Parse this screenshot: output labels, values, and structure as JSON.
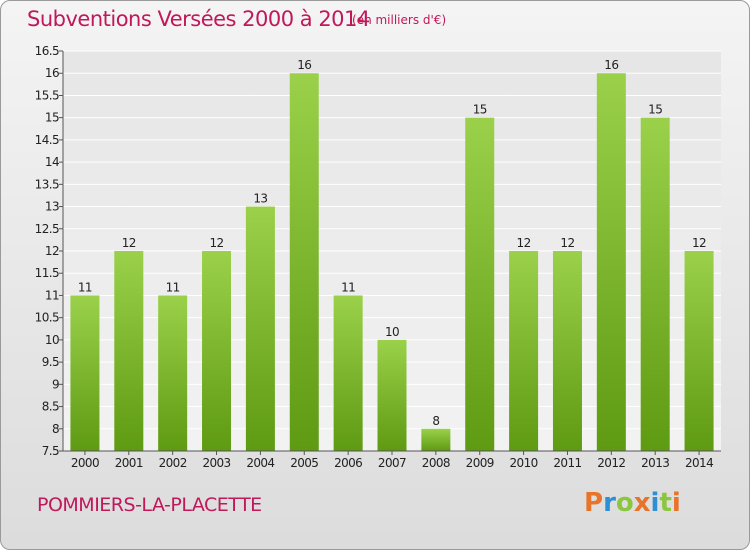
{
  "header": {
    "title": "Subventions Versées 2000 à 2014",
    "unit": "(en milliers d'€)"
  },
  "footer": {
    "commune": "POMMIERS-LA-PLACETTE",
    "logo_text": "Proxiti"
  },
  "colors": {
    "title": "#c0185a",
    "bar_light": "#9bd14a",
    "bar_dark": "#5e9a12",
    "logo_letters": [
      "#e8742a",
      "#2d8fd6",
      "#8cc63f",
      "#e8742a",
      "#2d8fd6",
      "#8cc63f",
      "#e8742a"
    ]
  },
  "chart_data": {
    "type": "bar",
    "categories": [
      "2000",
      "2001",
      "2002",
      "2003",
      "2004",
      "2005",
      "2006",
      "2007",
      "2008",
      "2009",
      "2010",
      "2011",
      "2012",
      "2013",
      "2014"
    ],
    "values": [
      11,
      12,
      11,
      12,
      13,
      16,
      11,
      10,
      8,
      15,
      12,
      12,
      16,
      15,
      12
    ],
    "ylim": [
      7.5,
      16.5
    ],
    "yticks": [
      "7.5",
      "8",
      "8.5",
      "9",
      "9.5",
      "10",
      "10.5",
      "11",
      "11.5",
      "12",
      "12.5",
      "13",
      "13.5",
      "14",
      "14.5",
      "15",
      "15.5",
      "16",
      "16.5"
    ],
    "grid": true,
    "data_labels": true
  }
}
